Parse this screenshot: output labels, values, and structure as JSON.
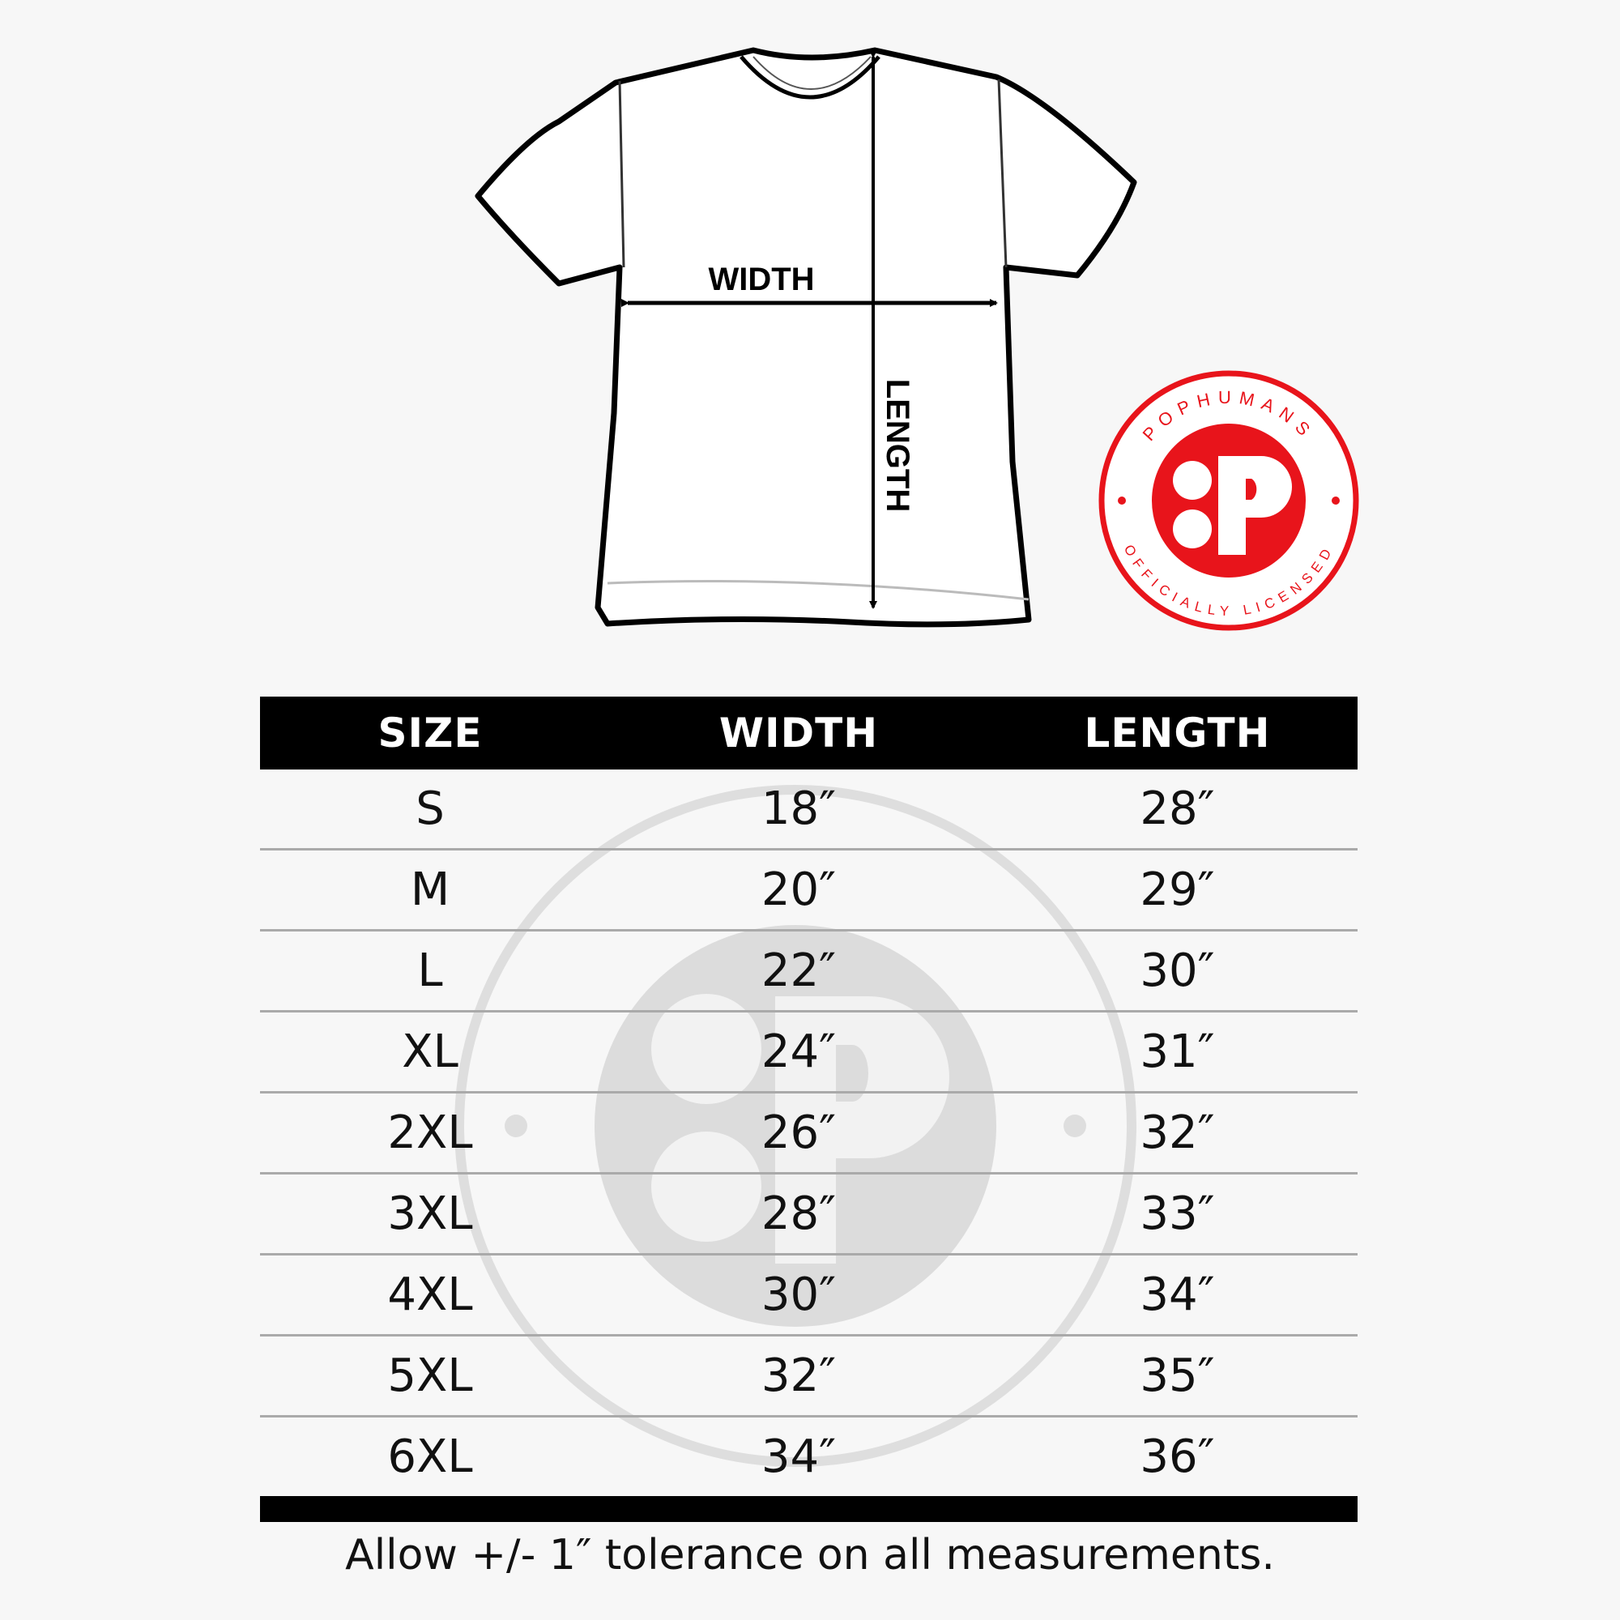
{
  "diagram": {
    "width_label": "WIDTH",
    "length_label": "LENGTH"
  },
  "badge": {
    "brand": "POPHUMANS",
    "subtitle": "OFFICIALLY LICENSED",
    "letter": "P",
    "color": "#e8141b"
  },
  "table": {
    "headers": [
      "SIZE",
      "WIDTH",
      "LENGTH"
    ],
    "rows": [
      {
        "size": "S",
        "width": "18″",
        "length": "28″"
      },
      {
        "size": "M",
        "width": "20″",
        "length": "29″"
      },
      {
        "size": "L",
        "width": "22″",
        "length": "30″"
      },
      {
        "size": "XL",
        "width": "24″",
        "length": "31″"
      },
      {
        "size": "2XL",
        "width": "26″",
        "length": "32″"
      },
      {
        "size": "3XL",
        "width": "28″",
        "length": "33″"
      },
      {
        "size": "4XL",
        "width": "30″",
        "length": "34″"
      },
      {
        "size": "5XL",
        "width": "32″",
        "length": "35″"
      },
      {
        "size": "6XL",
        "width": "34″",
        "length": "36″"
      }
    ]
  },
  "footer": "Allow +/- 1″ tolerance on all measurements."
}
